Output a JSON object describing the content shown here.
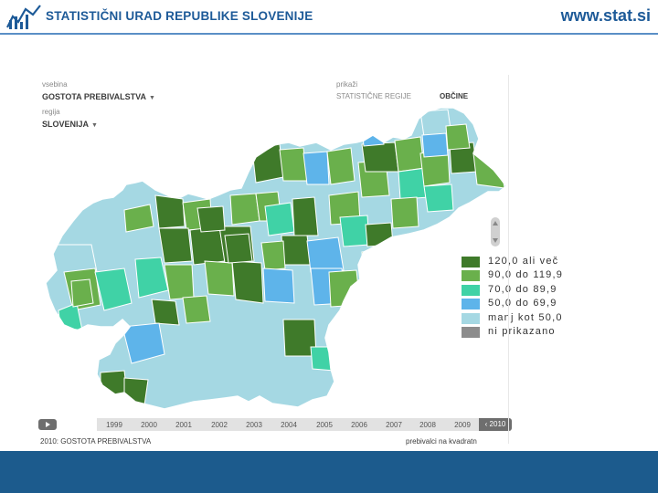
{
  "header": {
    "org_name": "STATISTIČNI URAD REPUBLIKE SLOVENIJE",
    "site_url": "www.stat.si",
    "accent": "#1d5a98"
  },
  "controls": {
    "content_label": "vsebina",
    "content_value": "GOSTOTA PREBIVALSTVA",
    "region_label": "regija",
    "region_value": "SLOVENIJA",
    "show_label": "prikaži",
    "show_options": [
      "STATISTIČNE REGIJE",
      "OBČINE"
    ],
    "show_selected": "OBČINE"
  },
  "legend": {
    "items": [
      {
        "label": "120,0 ali več",
        "color": "#3f7a2a"
      },
      {
        "label": "90,0 do 119,9",
        "color": "#6ab04c"
      },
      {
        "label": "70,0 do 89,9",
        "color": "#40d2a6"
      },
      {
        "label": "50,0 do 69,9",
        "color": "#5eb4ea"
      },
      {
        "label": "manj kot 50,0",
        "color": "#a5d8e3"
      },
      {
        "label": "ni prikazano",
        "color": "#8c8c8c"
      }
    ]
  },
  "timeline": {
    "years": [
      "1999",
      "2000",
      "2001",
      "2002",
      "2003",
      "2004",
      "2005",
      "2006",
      "2007",
      "2008",
      "2009"
    ],
    "current": "2010"
  },
  "footer": {
    "left": "2010: GOSTOTA PREBIVALSTVA",
    "right": "prebivalci na kvadratn"
  },
  "bottom_band_color": "#1c5b8d"
}
